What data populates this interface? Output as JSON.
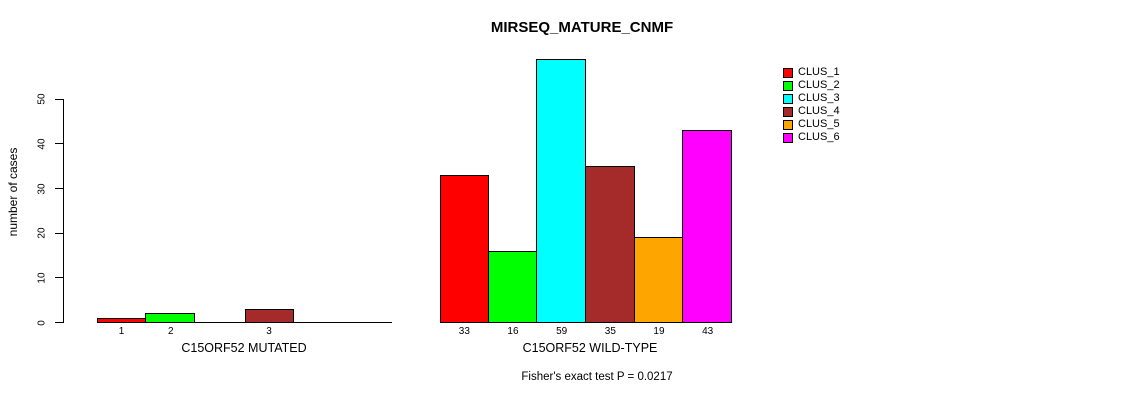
{
  "chart_data": {
    "type": "bar",
    "title": "MIRSEQ_MATURE_CNMF",
    "ylabel": "number of cases",
    "yticks": [
      0,
      10,
      20,
      30,
      40,
      50
    ],
    "ylim": [
      0,
      59
    ],
    "grid": false,
    "legend": {
      "position": "right",
      "entries": [
        {
          "name": "CLUS_1",
          "color": "#ff0000"
        },
        {
          "name": "CLUS_2",
          "color": "#00ff00"
        },
        {
          "name": "CLUS_3",
          "color": "#00ffff"
        },
        {
          "name": "CLUS_4",
          "color": "#a52a2a"
        },
        {
          "name": "CLUS_5",
          "color": "#ffa500"
        },
        {
          "name": "CLUS_6",
          "color": "#ff00ff"
        }
      ]
    },
    "categories": [
      "CLUS_1",
      "CLUS_2",
      "CLUS_3",
      "CLUS_4",
      "CLUS_5",
      "CLUS_6"
    ],
    "groups": [
      {
        "label": "C15ORF52 MUTATED",
        "values": [
          1,
          2,
          0,
          3,
          0,
          0
        ]
      },
      {
        "label": "C15ORF52 WILD-TYPE",
        "values": [
          33,
          16,
          59,
          35,
          19,
          43
        ]
      }
    ],
    "footnote": "Fisher's exact test P = 0.0217"
  }
}
